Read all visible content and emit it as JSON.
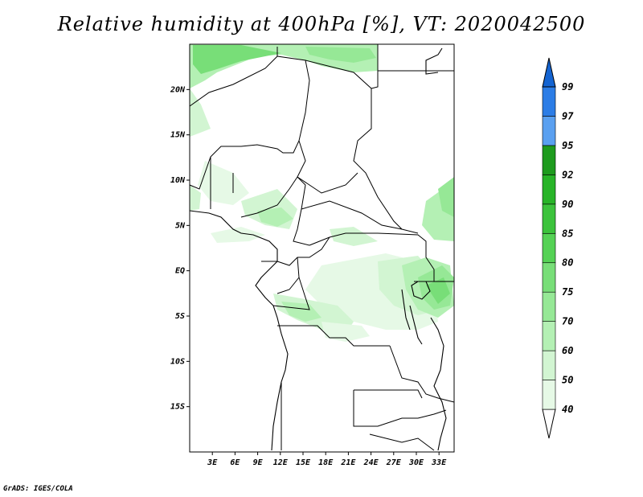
{
  "title": "Relative humidity at 400hPa [%], VT: 2020042500",
  "credit": "GrADS: IGES/COLA",
  "map": {
    "lon_range_deg": [
      0,
      35
    ],
    "lat_range_deg": [
      -20,
      25
    ],
    "lat_ticks": [
      {
        "lat": 20,
        "label": "20N"
      },
      {
        "lat": 15,
        "label": "15N"
      },
      {
        "lat": 10,
        "label": "10N"
      },
      {
        "lat": 5,
        "label": "5N"
      },
      {
        "lat": 0,
        "label": "EQ"
      },
      {
        "lat": -5,
        "label": "5S"
      },
      {
        "lat": -10,
        "label": "10S"
      },
      {
        "lat": -15,
        "label": "15S"
      }
    ],
    "lon_ticks": [
      {
        "lon": 3,
        "label": "3E"
      },
      {
        "lon": 6,
        "label": "6E"
      },
      {
        "lon": 9,
        "label": "9E"
      },
      {
        "lon": 12,
        "label": "12E"
      },
      {
        "lon": 15,
        "label": "15E"
      },
      {
        "lon": 18,
        "label": "18E"
      },
      {
        "lon": 21,
        "label": "21E"
      },
      {
        "lon": 24,
        "label": "24E"
      },
      {
        "lon": 27,
        "label": "27E"
      },
      {
        "lon": 30,
        "label": "30E"
      },
      {
        "lon": 33,
        "label": "33E"
      }
    ]
  },
  "colorbar": {
    "levels": [
      "40",
      "50",
      "60",
      "70",
      "75",
      "80",
      "85",
      "90",
      "92",
      "95",
      "97",
      "99"
    ],
    "colors": [
      "#ffffff",
      "#e6f9e6",
      "#d2f5d2",
      "#b4f0b4",
      "#96e896",
      "#78de78",
      "#55d255",
      "#3cc33c",
      "#28b428",
      "#1e9b1e",
      "#5aa0f0",
      "#2c7de6",
      "#1464d2"
    ]
  }
}
